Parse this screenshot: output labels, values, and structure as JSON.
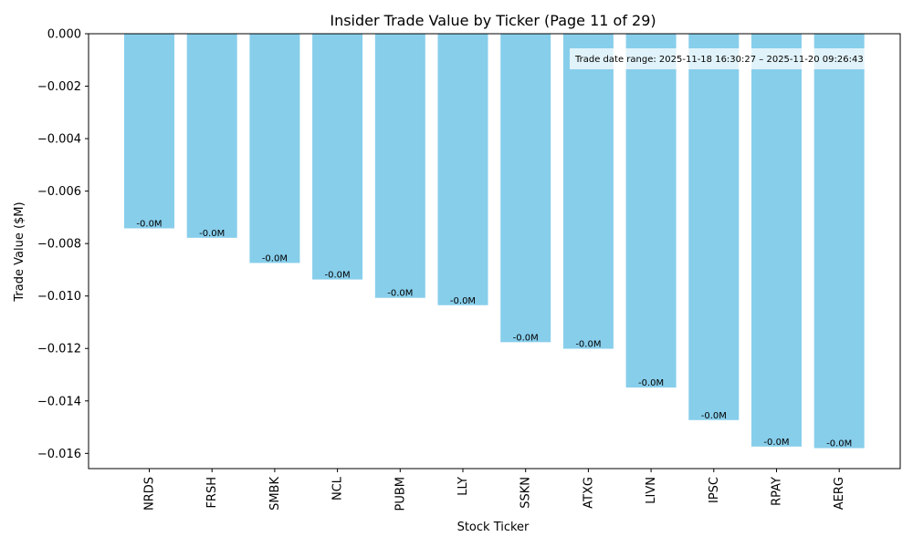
{
  "chart_data": {
    "type": "bar",
    "title": "Insider Trade Value by Ticker (Page 11 of 29)",
    "xlabel": "Stock Ticker",
    "ylabel": "Trade Value ($M)",
    "categories": [
      "NRDS",
      "FRSH",
      "SMBK",
      "NCL",
      "PUBM",
      "LLY",
      "SSKN",
      "ATXG",
      "LIVN",
      "IPSC",
      "RPAY",
      "AERG"
    ],
    "values": [
      -0.00742,
      -0.00778,
      -0.00874,
      -0.00937,
      -0.01007,
      -0.01035,
      -0.01176,
      -0.01201,
      -0.01349,
      -0.01473,
      -0.01574,
      -0.0158
    ],
    "data_labels": [
      "-0.0M",
      "-0.0M",
      "-0.0M",
      "-0.0M",
      "-0.0M",
      "-0.0M",
      "-0.0M",
      "-0.0M",
      "-0.0M",
      "-0.0M",
      "-0.0M",
      "-0.0M"
    ],
    "ylim": [
      -0.01658,
      0.0
    ],
    "yticks": [
      0.0,
      -0.002,
      -0.004,
      -0.006,
      -0.008,
      -0.01,
      -0.012,
      -0.014,
      -0.016
    ],
    "ytick_labels": [
      "0.000",
      "−0.002",
      "−0.004",
      "−0.006",
      "−0.008",
      "−0.010",
      "−0.012",
      "−0.014",
      "−0.016"
    ],
    "bar_color": "#87CEEB",
    "annotation": "Trade date range: 2025-11-18 16:30:27 – 2025-11-20 09:26:43",
    "grid": false,
    "legend": "none"
  }
}
